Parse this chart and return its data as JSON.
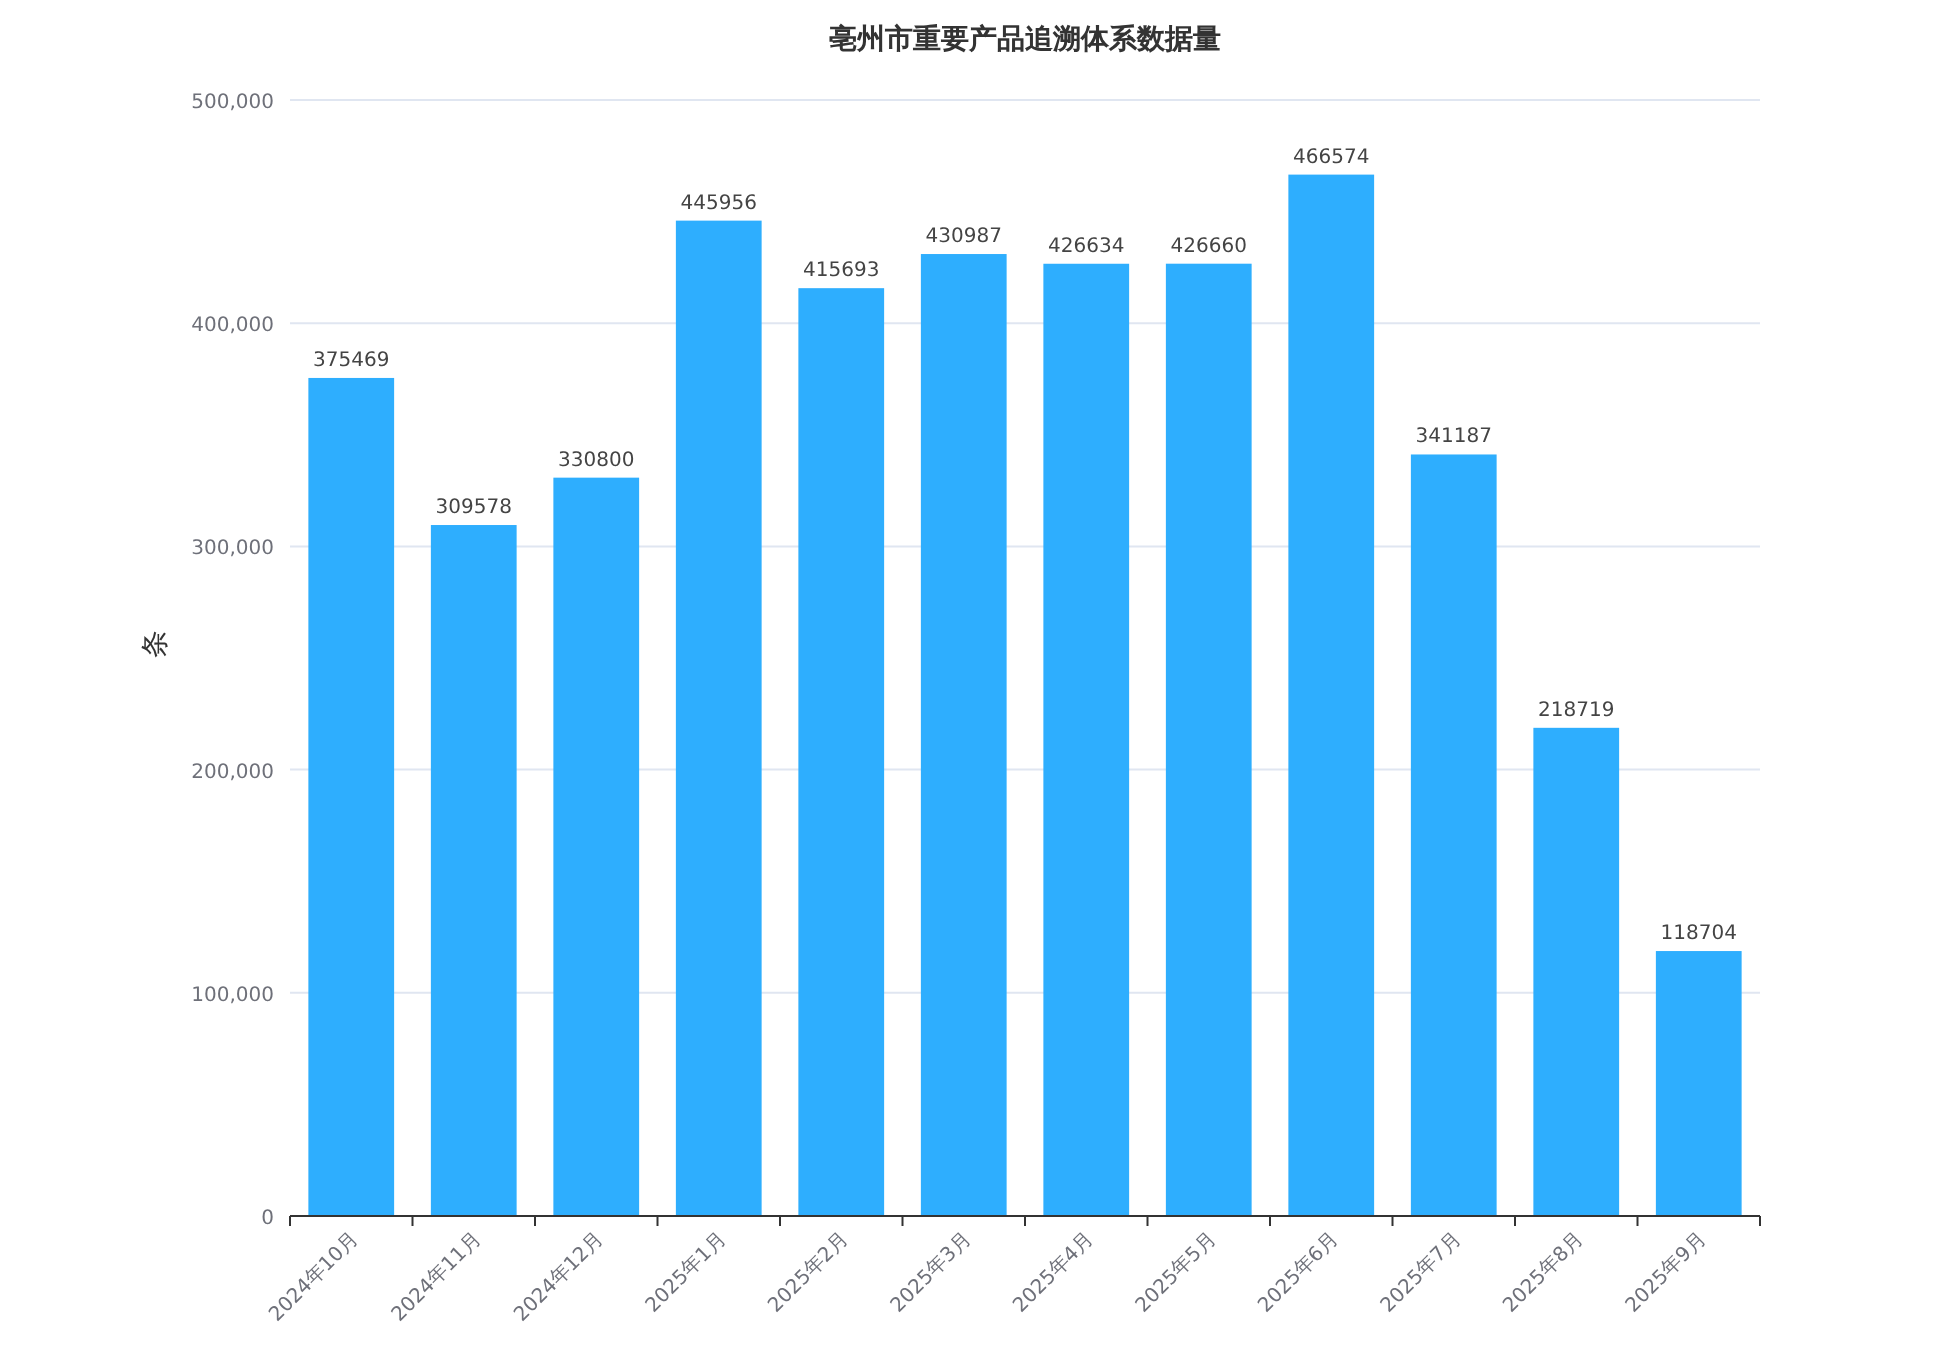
{
  "chart_data": {
    "type": "bar",
    "title": "亳州市重要产品追溯体系数据量",
    "ylabel": "条",
    "categories": [
      "2024年10月",
      "2024年11月",
      "2024年12月",
      "2025年1月",
      "2025年2月",
      "2025年3月",
      "2025年4月",
      "2025年5月",
      "2025年6月",
      "2025年7月",
      "2025年8月",
      "2025年9月"
    ],
    "values": [
      375469,
      309578,
      330800,
      445956,
      415693,
      430987,
      426634,
      426660,
      466574,
      341187,
      218719,
      118704
    ],
    "color": "#2eaefe",
    "ylim": [
      0,
      500000
    ],
    "yticks": [
      {
        "value": 0,
        "label": "0"
      },
      {
        "value": 100000,
        "label": "100,000"
      },
      {
        "value": 200000,
        "label": "200,000"
      },
      {
        "value": 300000,
        "label": "300,000"
      },
      {
        "value": 400000,
        "label": "400,000"
      },
      {
        "value": 500000,
        "label": "500,000"
      }
    ],
    "grid": "y",
    "data_labels": true
  }
}
